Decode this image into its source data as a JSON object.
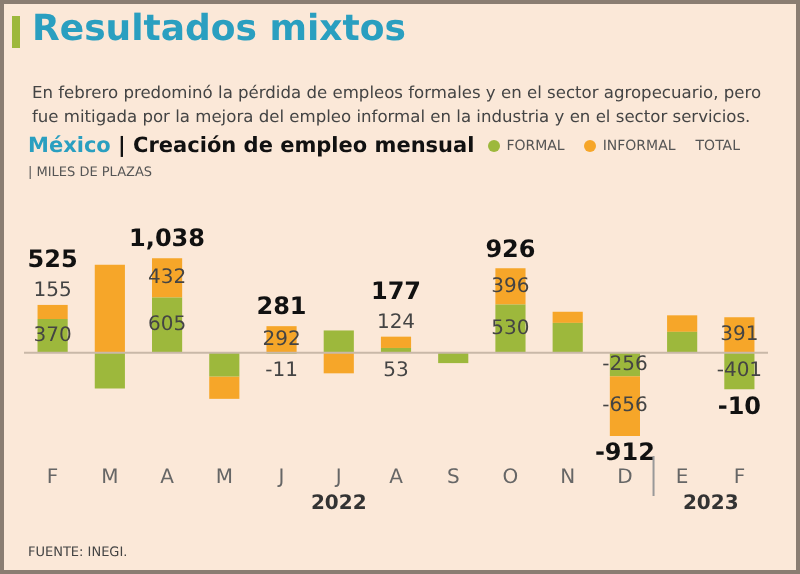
{
  "chart_data": {
    "type": "bar",
    "title": "Resultados mixtos",
    "subtitle": "En febrero predominó la pérdida de empleos formales y en el sector agropecuario, pero fue mitigada por la mejora del empleo informal en la industria y en el sector servicios.",
    "ylabel": "México | Creación de empleo mensual",
    "stacked": true,
    "legend": "top right",
    "categories": [
      "F",
      "M",
      "A",
      "M",
      "J",
      "J",
      "A",
      "S",
      "O",
      "N",
      "D",
      "E",
      "F"
    ],
    "series": [
      {
        "name": "FORMAL",
        "color": "#9db83c",
        "values": [
          370,
          -392,
          605,
          -260,
          -11,
          245,
          53,
          -113,
          530,
          328,
          -256,
          230,
          -401
        ],
        "value_labels": [
          "370",
          null,
          "605",
          null,
          "-11",
          null,
          "53",
          null,
          "530",
          null,
          "-256",
          null,
          "-401"
        ]
      },
      {
        "name": "INFORMAL",
        "color": "#f6a629",
        "values": [
          155,
          965,
          432,
          -245,
          292,
          -225,
          124,
          null,
          396,
          122,
          -656,
          181,
          391
        ],
        "value_labels": [
          "155",
          null,
          "432",
          null,
          "292",
          null,
          "124",
          null,
          "396",
          null,
          "-656",
          null,
          "391"
        ]
      }
    ],
    "totals": [
      "525",
      null,
      "1,038",
      null,
      "281",
      null,
      "177",
      null,
      "926",
      null,
      "-912",
      null,
      "-10"
    ],
    "annotations": [
      "TOTAL",
      "2022",
      "2023",
      "FUENTE: INEGI.",
      "| MILES DE PLAZAS"
    ]
  }
}
